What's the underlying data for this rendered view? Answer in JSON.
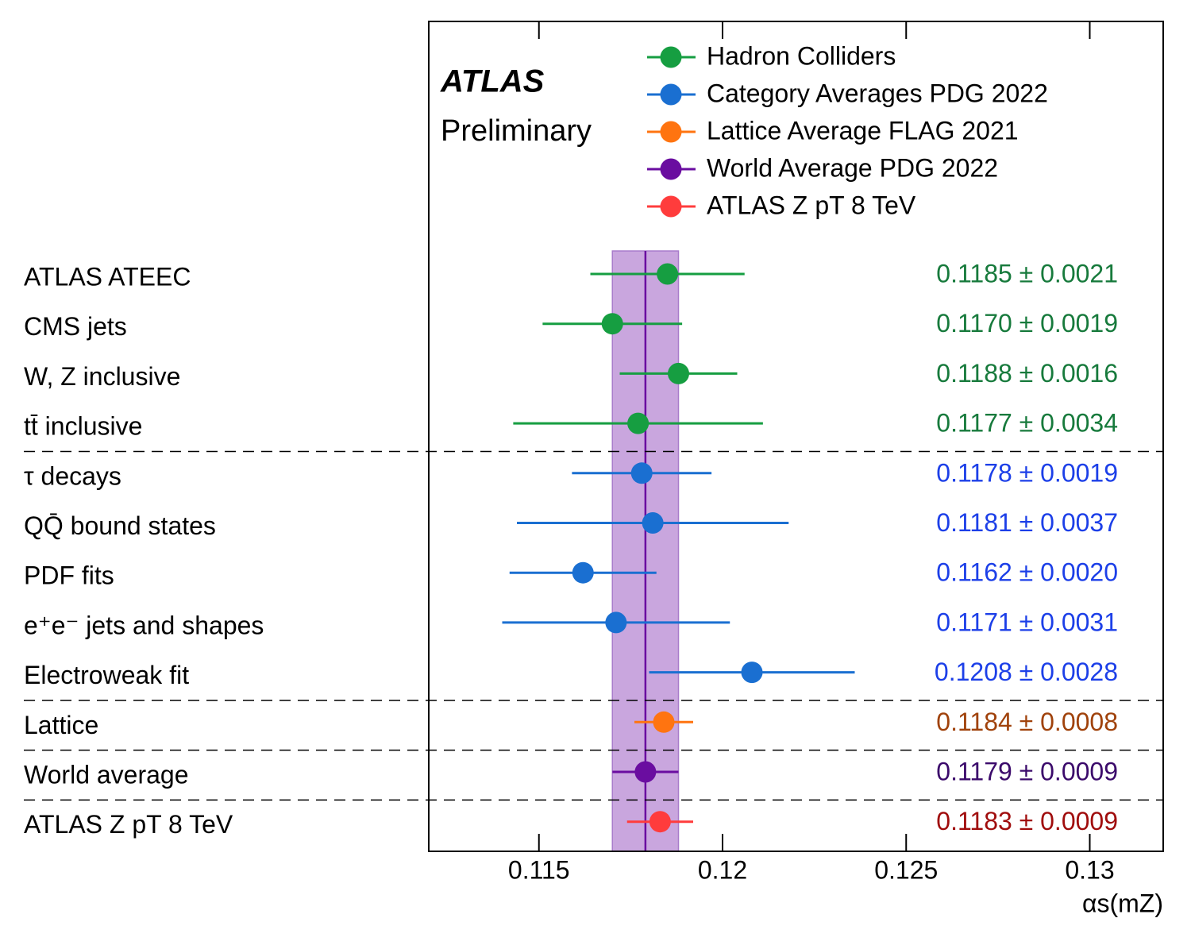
{
  "chart_data": {
    "type": "forest",
    "brand": "ATLAS",
    "subtitle": "Preliminary",
    "x_label": "αs(mZ)",
    "categories": [
      "ATLAS ATEEC",
      "CMS jets",
      "W, Z inclusive",
      "tt̄ inclusive",
      "τ decays",
      "QQ̄ bound states",
      "PDF fits",
      "e⁺e⁻ jets and shapes",
      "Electroweak fit",
      "Lattice",
      "World average",
      "ATLAS Z pT 8 TeV"
    ],
    "series": [
      {
        "name": "Hadron Colliders",
        "color": "#169e41",
        "label_color": "#177a3c",
        "values": [
          0.1185,
          0.117,
          0.1188,
          0.1177,
          null,
          null,
          null,
          null,
          null,
          null,
          null,
          null
        ],
        "errors": [
          0.0021,
          0.0019,
          0.0016,
          0.0034,
          null,
          null,
          null,
          null,
          null,
          null,
          null,
          null
        ],
        "value_labels": [
          "0.1185 ± 0.0021",
          "0.1170 ± 0.0019",
          "0.1188 ± 0.0016",
          "0.1177 ± 0.0034",
          null,
          null,
          null,
          null,
          null,
          null,
          null,
          null
        ]
      },
      {
        "name": "Category Averages PDG 2022",
        "color": "#1a6fd1",
        "label_color": "#1c3fe8",
        "values": [
          null,
          null,
          null,
          null,
          0.1178,
          0.1181,
          0.1162,
          0.1171,
          0.1208,
          null,
          null,
          null
        ],
        "errors": [
          null,
          null,
          null,
          null,
          0.0019,
          0.0037,
          0.002,
          0.0031,
          0.0028,
          null,
          null,
          null
        ],
        "value_labels": [
          null,
          null,
          null,
          null,
          "0.1178 ± 0.0019",
          "0.1181 ± 0.0037",
          "0.1162 ± 0.0020",
          "0.1171 ± 0.0031",
          "0.1208 ± 0.0028",
          null,
          null,
          null
        ]
      },
      {
        "name": "Lattice Average FLAG 2021",
        "color": "#ff7410",
        "label_color": "#a0420b",
        "values": [
          null,
          null,
          null,
          null,
          null,
          null,
          null,
          null,
          null,
          0.1184,
          null,
          null
        ],
        "errors": [
          null,
          null,
          null,
          null,
          null,
          null,
          null,
          null,
          null,
          0.0008,
          null,
          null
        ],
        "value_labels": [
          null,
          null,
          null,
          null,
          null,
          null,
          null,
          null,
          null,
          "0.1184 ± 0.0008",
          null,
          null
        ]
      },
      {
        "name": "World Average PDG 2022",
        "color": "#6a0da0",
        "label_color": "#3b0a6b",
        "values": [
          null,
          null,
          null,
          null,
          null,
          null,
          null,
          null,
          null,
          null,
          0.1179,
          null
        ],
        "errors": [
          null,
          null,
          null,
          null,
          null,
          null,
          null,
          null,
          null,
          null,
          0.0009,
          null
        ],
        "value_labels": [
          null,
          null,
          null,
          null,
          null,
          null,
          null,
          null,
          null,
          null,
          "0.1179 ± 0.0009",
          null
        ]
      },
      {
        "name": "ATLAS Z pT 8 TeV",
        "color": "#ff3c3c",
        "label_color": "#a00d0d",
        "values": [
          null,
          null,
          null,
          null,
          null,
          null,
          null,
          null,
          null,
          null,
          null,
          0.1183
        ],
        "errors": [
          null,
          null,
          null,
          null,
          null,
          null,
          null,
          null,
          null,
          null,
          null,
          0.0009
        ],
        "value_labels": [
          null,
          null,
          null,
          null,
          null,
          null,
          null,
          null,
          null,
          null,
          null,
          "0.1183 ± 0.0009"
        ]
      }
    ],
    "band_series": 3,
    "band_color": "#c9a6de",
    "xlim": [
      0.112,
      0.132
    ],
    "xticks": [
      0.115,
      0.12,
      0.125,
      0.13
    ]
  }
}
